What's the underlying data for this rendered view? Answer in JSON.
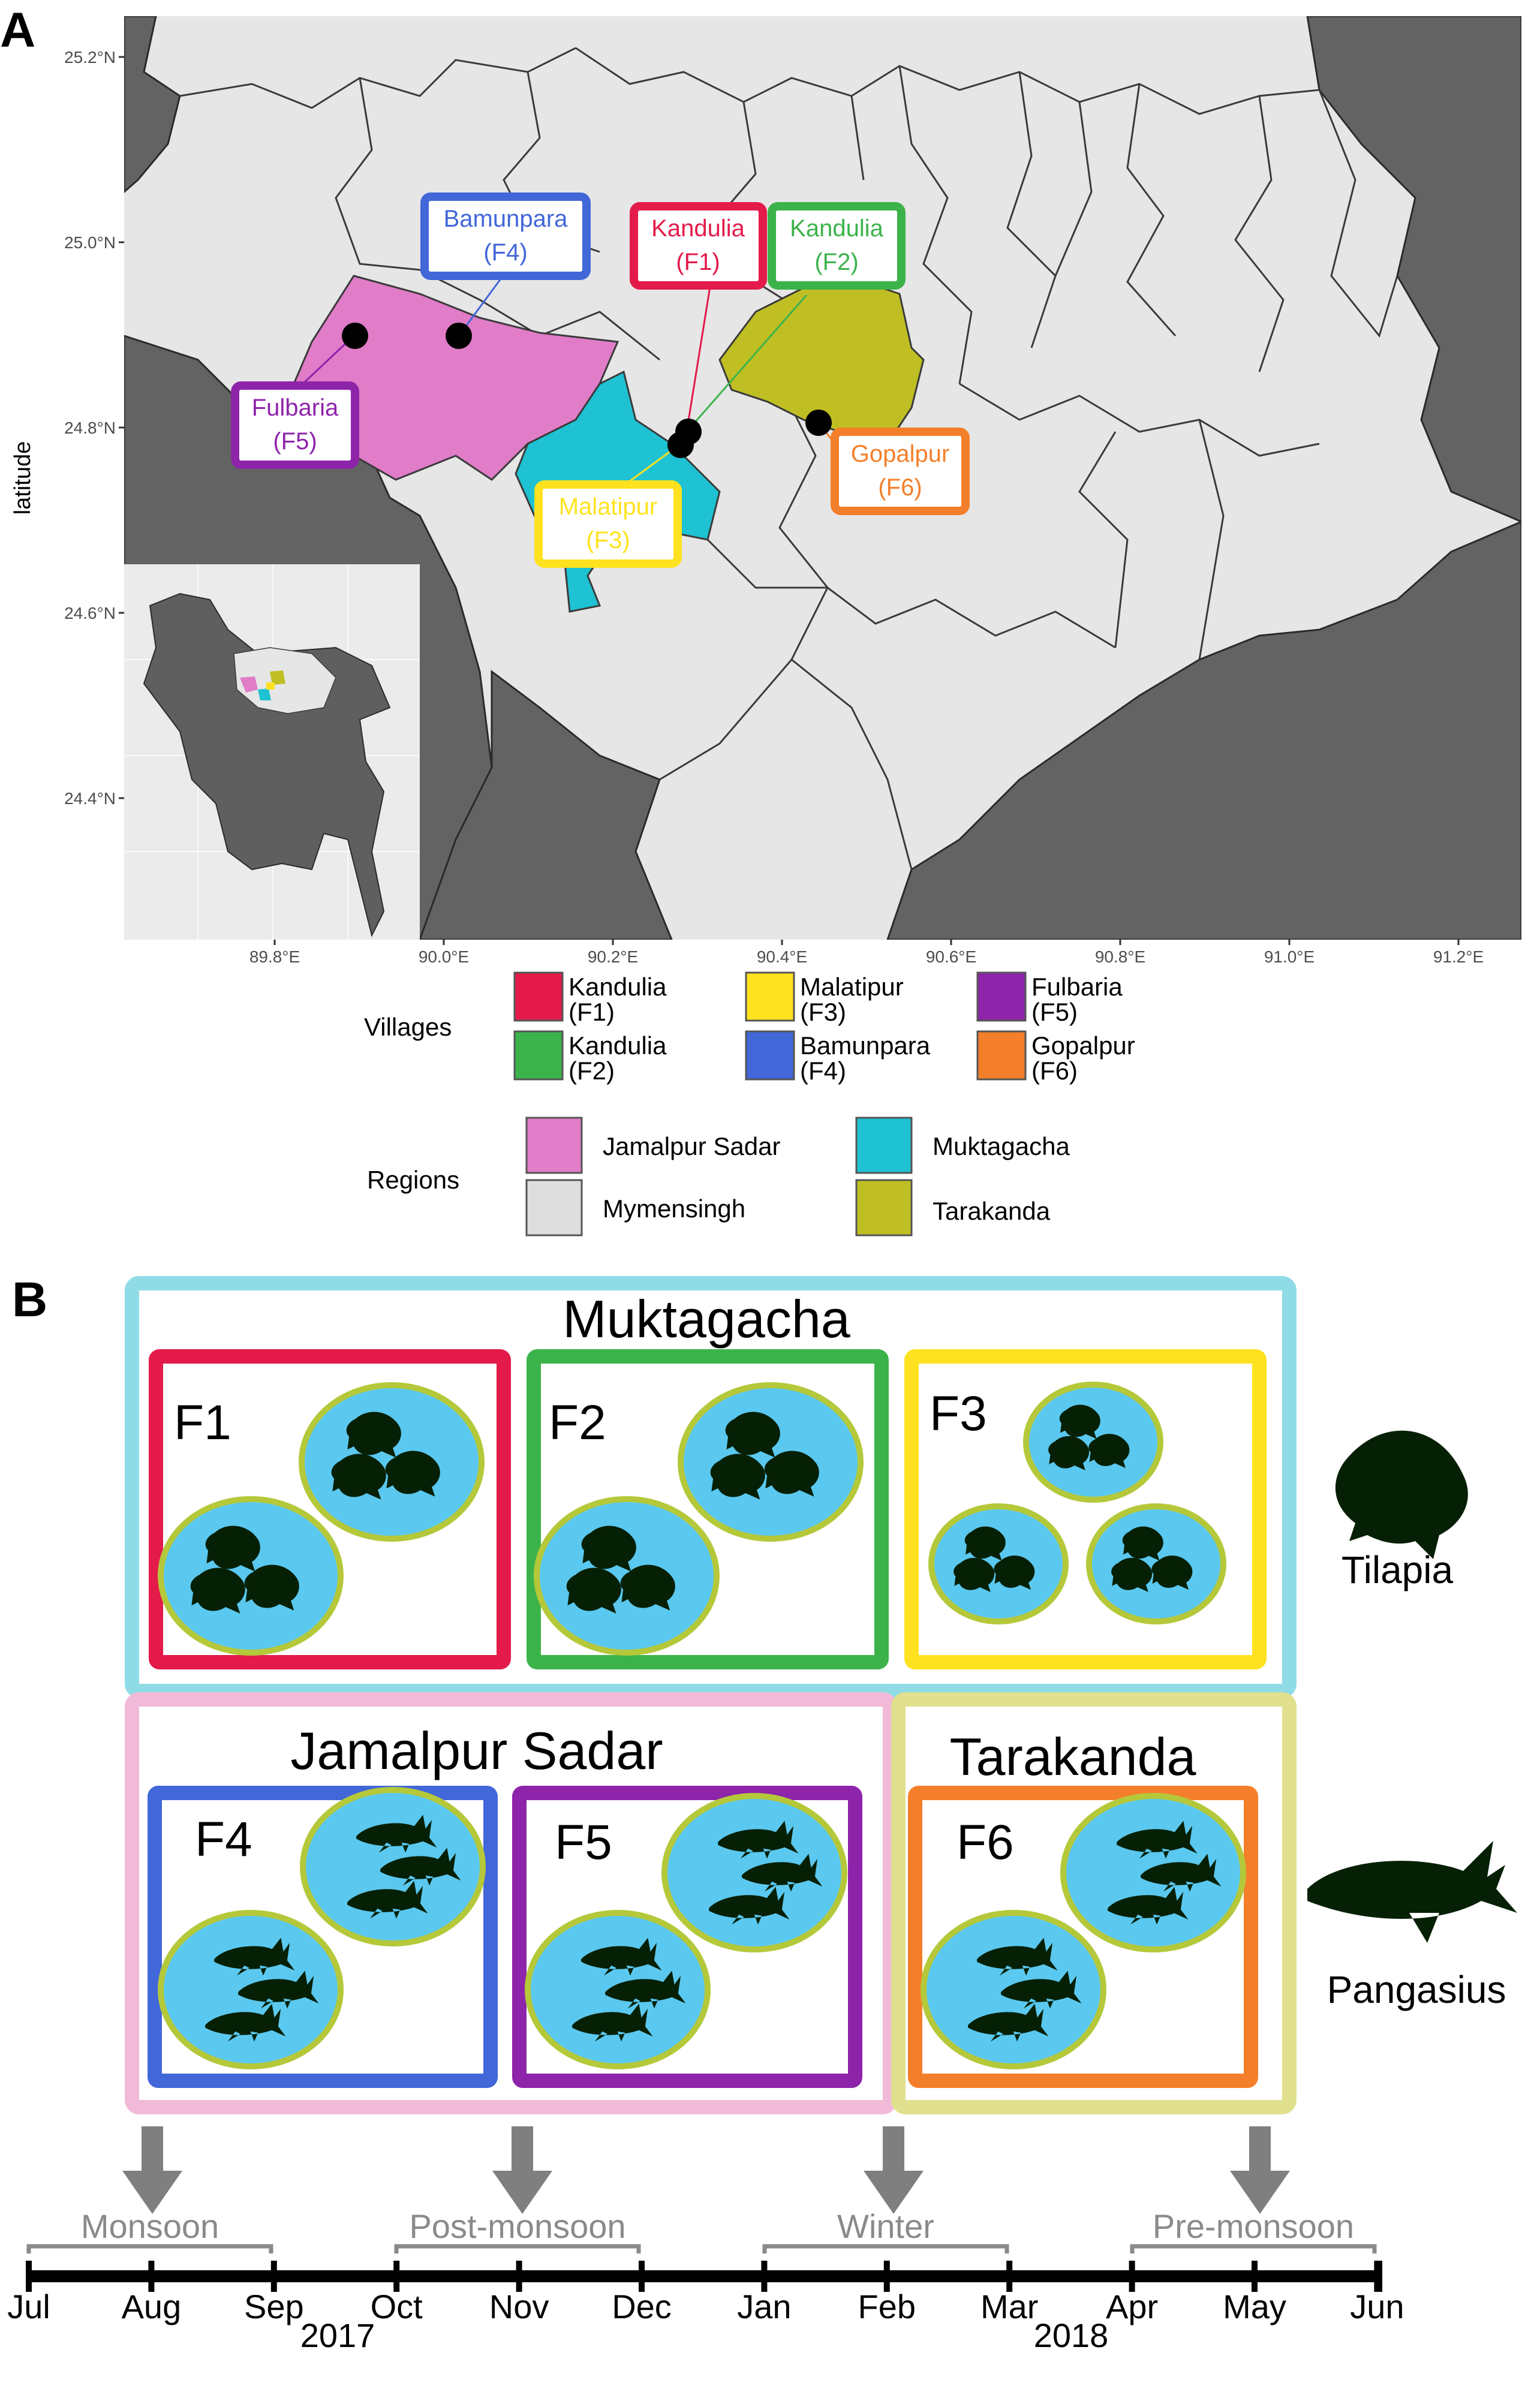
{
  "panel_a": {
    "label": "A",
    "y_axis_label": "latitude",
    "lat_ticks": [
      "25.2°N",
      "25.0°N",
      "24.8°N",
      "24.6°N",
      "24.4°N"
    ],
    "lon_ticks": [
      "89.8°E",
      "90.0°E",
      "90.2°E",
      "90.4°E",
      "90.6°E",
      "90.8°E",
      "91.0°E",
      "91.2°E"
    ],
    "callouts": [
      {
        "id": "F1",
        "name": "Kandulia",
        "code": "(F1)",
        "color": "#e31a4a"
      },
      {
        "id": "F2",
        "name": "Kandulia",
        "code": "(F2)",
        "color": "#3cb34a"
      },
      {
        "id": "F3",
        "name": "Malatipur",
        "code": "(F3)",
        "color": "#ffe21f"
      },
      {
        "id": "F4",
        "name": "Bamunpara",
        "code": "(F4)",
        "color": "#4167d9"
      },
      {
        "id": "F5",
        "name": "Fulbaria",
        "code": "(F5)",
        "color": "#8e24aa"
      },
      {
        "id": "F6",
        "name": "Gopalpur",
        "code": "(F6)",
        "color": "#f47f2a"
      }
    ],
    "legend_villages_title": "Villages",
    "legend_regions_title": "Regions",
    "regions": [
      {
        "name": "Jamalpur Sadar",
        "color": "#e07cc8"
      },
      {
        "name": "Muktagacha",
        "color": "#1ec2d2"
      },
      {
        "name": "Mymensingh",
        "color": "#dedede"
      },
      {
        "name": "Tarakanda",
        "color": "#bfbf23"
      }
    ]
  },
  "panel_b": {
    "label": "B",
    "groups": [
      {
        "name": "Muktagacha",
        "color": "#8fdbe6"
      },
      {
        "name": "Jamalpur Sadar",
        "color": "#f2bad9"
      },
      {
        "name": "Tarakanda",
        "color": "#e0e08f"
      }
    ],
    "farms": [
      {
        "id": "F1",
        "color": "#e31a4a"
      },
      {
        "id": "F2",
        "color": "#3cb34a"
      },
      {
        "id": "F3",
        "color": "#ffe21f"
      },
      {
        "id": "F4",
        "color": "#4167d9"
      },
      {
        "id": "F5",
        "color": "#8e24aa"
      },
      {
        "id": "F6",
        "color": "#f47f2a"
      }
    ],
    "species": [
      "Tilapia",
      "Pangasius"
    ],
    "seasons": [
      "Monsoon",
      "Post-monsoon",
      "Winter",
      "Pre-monsoon"
    ],
    "months": [
      "Jul",
      "Aug",
      "Sep",
      "Oct",
      "Nov",
      "Dec",
      "Jan",
      "Feb",
      "Mar",
      "Apr",
      "May",
      "Jun"
    ],
    "years": [
      "2017",
      "2018"
    ],
    "pond_color": "#5bc8ef",
    "pond_rim": "#b5c83a"
  }
}
